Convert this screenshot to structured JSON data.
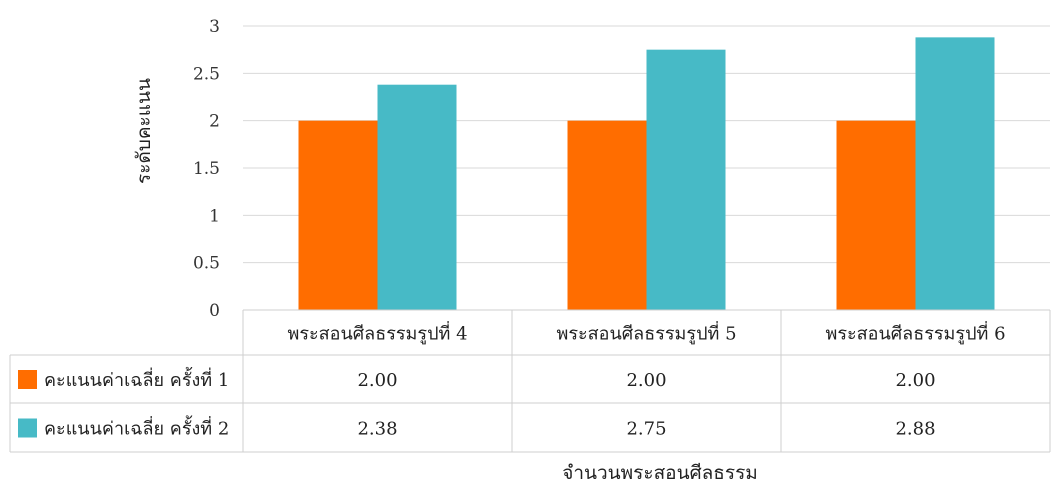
{
  "chart_data": {
    "type": "bar",
    "categories": [
      "พระสอนศีลธรรมรูปที่ 4",
      "พระสอนศีลธรรมรูปที่ 5",
      "พระสอนศีลธรรมรูปที่ 6"
    ],
    "series": [
      {
        "name": "คะแนนค่าเฉลี่ย ครั้งที่ 1",
        "values": [
          2.0,
          2.0,
          2.0
        ],
        "labels": [
          "2.00",
          "2.00",
          "2.00"
        ],
        "color": "#FF6D00"
      },
      {
        "name": "คะแนนค่าเฉลี่ย ครั้งที่ 2",
        "values": [
          2.38,
          2.75,
          2.88
        ],
        "labels": [
          "2.38",
          "2.75",
          "2.88"
        ],
        "color": "#47BAC6"
      }
    ],
    "ylabel": "ระดับคะแนน",
    "xlabel": "จำนวนพระสอนศีลธรรม",
    "ylim": [
      0,
      3
    ],
    "yticks": [
      "0",
      "0.5",
      "1",
      "1.5",
      "2",
      "2.5",
      "3"
    ],
    "grid": true,
    "legend": "data-table"
  }
}
